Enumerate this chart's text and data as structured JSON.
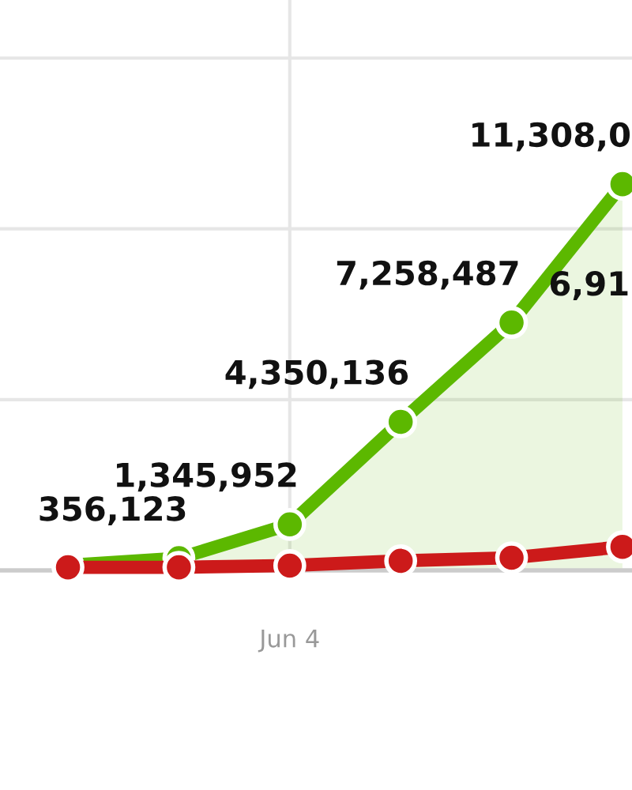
{
  "chart_data": {
    "type": "line",
    "categories": [
      null,
      null,
      null,
      null,
      null,
      null
    ],
    "series": [
      {
        "type": "area",
        "color": "#5cb800",
        "values": [
          150000,
          356123,
          1345952,
          4350136,
          7258487,
          11308000
        ],
        "value_labels": [
          null,
          "356,123",
          "1,345,952",
          "4,350,136",
          "7,258,487",
          "11,308,0"
        ]
      },
      {
        "color": "#cc1a1a",
        "values": [
          90000,
          90000,
          140000,
          280000,
          370000,
          690000
        ]
      }
    ],
    "ylim": [
      0,
      16700000
    ],
    "yticks": [
      {
        "value": 0,
        "label": null
      },
      {
        "value": 5000000,
        "label": null
      },
      {
        "value": 10000000,
        "label": null
      },
      {
        "value": 15000000,
        "label": null
      }
    ],
    "grid": true,
    "marker": "circle",
    "annotations": [
      "Jun 4",
      "6,91"
    ]
  }
}
